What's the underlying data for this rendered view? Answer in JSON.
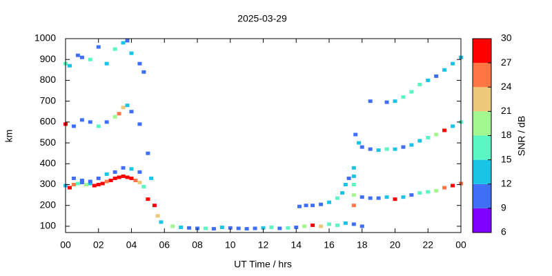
{
  "chart_data": {
    "type": "heatmap-scatter",
    "title": "2025-03-29",
    "x_label": "UT Time / hrs",
    "y_label": "km",
    "xlim": [
      0,
      24
    ],
    "ylim": [
      70,
      1000
    ],
    "xticks": [
      {
        "value": 0,
        "label": "00"
      },
      {
        "value": 2,
        "label": "02"
      },
      {
        "value": 4,
        "label": "04"
      },
      {
        "value": 6,
        "label": "06"
      },
      {
        "value": 8,
        "label": "08"
      },
      10,
      12,
      14,
      16,
      18,
      20,
      22,
      {
        "value": 24,
        "label": "00"
      }
    ],
    "yticks": [
      100,
      200,
      300,
      400,
      500,
      600,
      700,
      800,
      900,
      1000
    ],
    "colorbar": {
      "label": "SNR / dB",
      "lim": [
        6,
        30
      ],
      "ticks": [
        6,
        9,
        12,
        15,
        18,
        21,
        24,
        27,
        30
      ],
      "colors": [
        "#8000ff",
        "#3f6ff7",
        "#19c4e7",
        "#5af6c4",
        "#a2f78e",
        "#ecc878",
        "#ff7644",
        "#ff0000"
      ]
    },
    "series": [
      {
        "x": [
          0,
          0.25,
          0.5,
          0.75,
          1,
          1.25,
          1.5,
          1.75,
          2,
          2.25,
          2.5,
          2.75,
          3,
          3.25,
          3.5,
          3.75,
          4,
          4.25,
          4.5,
          4.75,
          5
        ],
        "y": [
          295,
          285,
          300,
          305,
          310,
          300,
          305,
          295,
          300,
          305,
          315,
          320,
          330,
          335,
          340,
          335,
          330,
          320,
          310,
          290,
          230
        ],
        "z": [
          12,
          27,
          24,
          15,
          11,
          18,
          12,
          27,
          30,
          27,
          24,
          27,
          30,
          27,
          30,
          30,
          27,
          24,
          21,
          15,
          27
        ]
      },
      {
        "x": [
          0.5,
          1,
          1.5,
          2,
          2.5,
          3,
          3.5,
          4,
          4.5
        ],
        "y": [
          330,
          320,
          315,
          330,
          350,
          360,
          380,
          375,
          360
        ],
        "z": [
          10,
          11,
          10,
          10,
          12,
          11,
          10,
          13,
          10
        ]
      },
      {
        "x": [
          0,
          0.5,
          1,
          1.5,
          2,
          2.5,
          3,
          3.25,
          3.5,
          3.75,
          4,
          4.5
        ],
        "y": [
          590,
          580,
          610,
          600,
          580,
          600,
          625,
          640,
          670,
          680,
          650,
          590
        ],
        "z": [
          27,
          10,
          11,
          10,
          15,
          11,
          18,
          24,
          21,
          12,
          11,
          10
        ]
      },
      {
        "x": [
          0,
          0.25,
          0.75,
          1,
          1.5,
          2,
          2.5,
          3,
          3.5,
          3.75,
          4,
          4.5,
          4.75
        ],
        "y": [
          880,
          870,
          920,
          910,
          900,
          960,
          880,
          950,
          980,
          990,
          930,
          880,
          840
        ],
        "z": [
          15,
          12,
          11,
          10,
          15,
          11,
          12,
          16,
          13,
          11,
          14,
          10,
          10
        ]
      },
      {
        "x": [
          5,
          5.2,
          5.4,
          5.6,
          5.8
        ],
        "y": [
          450,
          330,
          200,
          150,
          120
        ],
        "z": [
          11,
          12,
          30,
          21,
          12
        ]
      },
      {
        "x": [
          6.5,
          7,
          7.5,
          8,
          8.5,
          9,
          9.5,
          10,
          10.5,
          11,
          11.5,
          12,
          12.5,
          13,
          13.5,
          14,
          14.5,
          15,
          15.5,
          16,
          16.5,
          17,
          17.5,
          18
        ],
        "y": [
          100,
          95,
          92,
          90,
          90,
          88,
          95,
          92,
          90,
          88,
          90,
          92,
          95,
          90,
          92,
          95,
          100,
          105,
          100,
          110,
          105,
          115,
          110,
          100
        ],
        "z": [
          18,
          14,
          11,
          11,
          15,
          11,
          13,
          11,
          11,
          10,
          11,
          14,
          16,
          11,
          15,
          11,
          20,
          27,
          22,
          16,
          15,
          13,
          11,
          10
        ]
      },
      {
        "x": [
          14.2,
          14.6,
          15,
          15.5,
          16,
          16.5,
          16.8,
          17,
          17.2
        ],
        "y": [
          195,
          200,
          200,
          205,
          215,
          235,
          260,
          300,
          330
        ],
        "z": [
          10,
          10,
          11,
          10,
          12,
          15,
          14,
          13,
          11
        ]
      },
      {
        "x": [
          17.5,
          17.5,
          17.5,
          17.5,
          17.5
        ],
        "y": [
          380,
          340,
          300,
          250,
          200
        ],
        "z": [
          12,
          13,
          15,
          18,
          24
        ]
      },
      {
        "x": [
          18,
          18.5,
          19,
          19.5,
          20,
          20.5,
          21,
          21.5,
          22,
          22.5,
          23,
          23.5,
          24
        ],
        "y": [
          240,
          235,
          235,
          240,
          230,
          240,
          250,
          260,
          265,
          270,
          285,
          295,
          305
        ],
        "z": [
          10,
          11,
          10,
          12,
          27,
          12,
          11,
          15,
          16,
          18,
          24,
          27,
          24
        ]
      },
      {
        "x": [
          17.6,
          17.8,
          18,
          18.5,
          19,
          19.5,
          20,
          20.5,
          21,
          21.5,
          22,
          22.5,
          23,
          23.5,
          24
        ],
        "y": [
          540,
          500,
          480,
          470,
          465,
          470,
          470,
          480,
          490,
          510,
          525,
          540,
          560,
          580,
          600
        ],
        "z": [
          11,
          12,
          10,
          11,
          12,
          15,
          13,
          11,
          12,
          14,
          15,
          18,
          30,
          13,
          16
        ]
      },
      {
        "x": [
          18.5,
          19.5,
          20,
          20.5,
          21,
          21.5,
          22,
          22.5,
          23,
          23.5,
          24
        ],
        "y": [
          700,
          695,
          700,
          720,
          745,
          780,
          800,
          820,
          850,
          880,
          910
        ],
        "z": [
          10,
          11,
          14,
          15,
          17,
          16,
          12,
          11,
          13,
          14,
          12
        ]
      }
    ]
  }
}
